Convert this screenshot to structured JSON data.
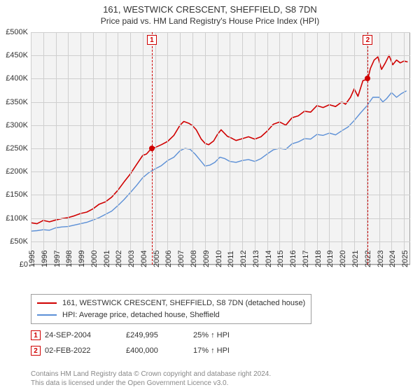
{
  "title": {
    "line1": "161, WESTWICK CRESCENT, SHEFFIELD, S8 7DN",
    "line2": "Price paid vs. HM Land Registry's House Price Index (HPI)",
    "title_fontsize": 13,
    "subtitle_fontsize": 12,
    "color": "#333333"
  },
  "chart": {
    "type": "line",
    "background_color": "#f3f3f3",
    "border_color": "#9e9e9e",
    "grid_color": "#cfcfcf",
    "xlim": [
      1995,
      2025.5
    ],
    "ylim": [
      0,
      500000
    ],
    "ytick_step": 50000,
    "yticks": [
      "£0",
      "£50K",
      "£100K",
      "£150K",
      "£200K",
      "£250K",
      "£300K",
      "£350K",
      "£400K",
      "£450K",
      "£500K"
    ],
    "xticks": [
      1995,
      1996,
      1997,
      1998,
      1999,
      2000,
      2001,
      2002,
      2003,
      2004,
      2005,
      2006,
      2007,
      2008,
      2009,
      2010,
      2011,
      2012,
      2013,
      2014,
      2015,
      2016,
      2017,
      2018,
      2019,
      2020,
      2021,
      2022,
      2023,
      2024,
      2025
    ],
    "label_fontsize": 11,
    "series": [
      {
        "name": "161, WESTWICK CRESCENT, SHEFFIELD, S8 7DN (detached house)",
        "color": "#d00000",
        "line_width": 1.6,
        "points": [
          [
            1995,
            90000
          ],
          [
            1995.5,
            88000
          ],
          [
            1996,
            95000
          ],
          [
            1996.5,
            92000
          ],
          [
            1997,
            96000
          ],
          [
            1997.5,
            99000
          ],
          [
            1998,
            101000
          ],
          [
            1998.5,
            105000
          ],
          [
            1999,
            110000
          ],
          [
            1999.5,
            113000
          ],
          [
            2000,
            120000
          ],
          [
            2000.5,
            130000
          ],
          [
            2001,
            135000
          ],
          [
            2001.5,
            145000
          ],
          [
            2002,
            160000
          ],
          [
            2002.5,
            178000
          ],
          [
            2003,
            195000
          ],
          [
            2003.5,
            215000
          ],
          [
            2004,
            235000
          ],
          [
            2004.3,
            238000
          ],
          [
            2004.7,
            249995
          ],
          [
            2005,
            252000
          ],
          [
            2005.5,
            258000
          ],
          [
            2006,
            265000
          ],
          [
            2006.5,
            278000
          ],
          [
            2007,
            300000
          ],
          [
            2007.3,
            308000
          ],
          [
            2007.7,
            304000
          ],
          [
            2008,
            299000
          ],
          [
            2008.3,
            290000
          ],
          [
            2008.7,
            270000
          ],
          [
            2009,
            261000
          ],
          [
            2009.3,
            258000
          ],
          [
            2009.7,
            266000
          ],
          [
            2010,
            280000
          ],
          [
            2010.3,
            290000
          ],
          [
            2010.8,
            276000
          ],
          [
            2011,
            274000
          ],
          [
            2011.5,
            267000
          ],
          [
            2012,
            271000
          ],
          [
            2012.5,
            275000
          ],
          [
            2013,
            270000
          ],
          [
            2013.5,
            275000
          ],
          [
            2014,
            287000
          ],
          [
            2014.5,
            302000
          ],
          [
            2015,
            307000
          ],
          [
            2015.5,
            300000
          ],
          [
            2016,
            316000
          ],
          [
            2016.5,
            320000
          ],
          [
            2017,
            330000
          ],
          [
            2017.5,
            328000
          ],
          [
            2018,
            342000
          ],
          [
            2018.5,
            338000
          ],
          [
            2019,
            344000
          ],
          [
            2019.5,
            340000
          ],
          [
            2020,
            350000
          ],
          [
            2020.3,
            345000
          ],
          [
            2020.7,
            360000
          ],
          [
            2021,
            378000
          ],
          [
            2021.3,
            362000
          ],
          [
            2021.7,
            396000
          ],
          [
            2022,
            398000
          ],
          [
            2022.1,
            400000
          ],
          [
            2022.3,
            422000
          ],
          [
            2022.6,
            440000
          ],
          [
            2022.9,
            447000
          ],
          [
            2023.2,
            420000
          ],
          [
            2023.5,
            434000
          ],
          [
            2023.8,
            450000
          ],
          [
            2024.1,
            430000
          ],
          [
            2024.4,
            440000
          ],
          [
            2024.7,
            434000
          ],
          [
            2025,
            438000
          ],
          [
            2025.3,
            436000
          ]
        ]
      },
      {
        "name": "HPI: Average price, detached house, Sheffield",
        "color": "#5b8fd6",
        "line_width": 1.4,
        "points": [
          [
            1995,
            72000
          ],
          [
            1995.5,
            73000
          ],
          [
            1996,
            75000
          ],
          [
            1996.5,
            74000
          ],
          [
            1997,
            79000
          ],
          [
            1997.5,
            81000
          ],
          [
            1998,
            82000
          ],
          [
            1998.5,
            85000
          ],
          [
            1999,
            88000
          ],
          [
            1999.5,
            91000
          ],
          [
            2000,
            96000
          ],
          [
            2000.5,
            101000
          ],
          [
            2001,
            108000
          ],
          [
            2001.5,
            115000
          ],
          [
            2002,
            127000
          ],
          [
            2002.5,
            140000
          ],
          [
            2003,
            155000
          ],
          [
            2003.5,
            170000
          ],
          [
            2004,
            187000
          ],
          [
            2004.5,
            198000
          ],
          [
            2005,
            206000
          ],
          [
            2005.5,
            213000
          ],
          [
            2006,
            224000
          ],
          [
            2006.5,
            231000
          ],
          [
            2007,
            245000
          ],
          [
            2007.4,
            250000
          ],
          [
            2007.8,
            248000
          ],
          [
            2008.2,
            238000
          ],
          [
            2008.6,
            225000
          ],
          [
            2009,
            212000
          ],
          [
            2009.4,
            214000
          ],
          [
            2009.8,
            220000
          ],
          [
            2010.2,
            231000
          ],
          [
            2010.6,
            228000
          ],
          [
            2011,
            222000
          ],
          [
            2011.5,
            220000
          ],
          [
            2012,
            224000
          ],
          [
            2012.5,
            226000
          ],
          [
            2013,
            222000
          ],
          [
            2013.5,
            228000
          ],
          [
            2014,
            238000
          ],
          [
            2014.5,
            247000
          ],
          [
            2015,
            250000
          ],
          [
            2015.5,
            248000
          ],
          [
            2016,
            260000
          ],
          [
            2016.5,
            264000
          ],
          [
            2017,
            271000
          ],
          [
            2017.5,
            270000
          ],
          [
            2018,
            280000
          ],
          [
            2018.5,
            278000
          ],
          [
            2019,
            283000
          ],
          [
            2019.5,
            279000
          ],
          [
            2020,
            288000
          ],
          [
            2020.5,
            296000
          ],
          [
            2021,
            310000
          ],
          [
            2021.5,
            326000
          ],
          [
            2022,
            341000
          ],
          [
            2022.5,
            360000
          ],
          [
            2023,
            360000
          ],
          [
            2023.3,
            350000
          ],
          [
            2023.6,
            357000
          ],
          [
            2024,
            370000
          ],
          [
            2024.4,
            360000
          ],
          [
            2024.8,
            368000
          ],
          [
            2025.2,
            374000
          ]
        ]
      }
    ],
    "markers": [
      {
        "id": "1",
        "x": 2004.73,
        "y": 249995
      },
      {
        "id": "2",
        "x": 2022.09,
        "y": 400000
      }
    ],
    "marker_line_color": "#d00000",
    "marker_box_border": "#d00000",
    "marker_box_bg": "#ffffff",
    "marker_dot_color": "#d00000"
  },
  "legend": {
    "items": [
      {
        "color": "#d00000",
        "label": "161, WESTWICK CRESCENT, SHEFFIELD, S8 7DN (detached house)"
      },
      {
        "color": "#5b8fd6",
        "label": "HPI: Average price, detached house, Sheffield"
      }
    ],
    "fontsize": 11,
    "border_color": "#9e9e9e"
  },
  "sales": [
    {
      "marker": "1",
      "date": "24-SEP-2004",
      "price": "£249,995",
      "pct": "25% ↑ HPI"
    },
    {
      "marker": "2",
      "date": "02-FEB-2022",
      "price": "£400,000",
      "pct": "17% ↑ HPI"
    }
  ],
  "footer": {
    "line1": "Contains HM Land Registry data © Crown copyright and database right 2024.",
    "line2": "This data is licensed under the Open Government Licence v3.0.",
    "color": "#888888",
    "fontsize": 10
  }
}
